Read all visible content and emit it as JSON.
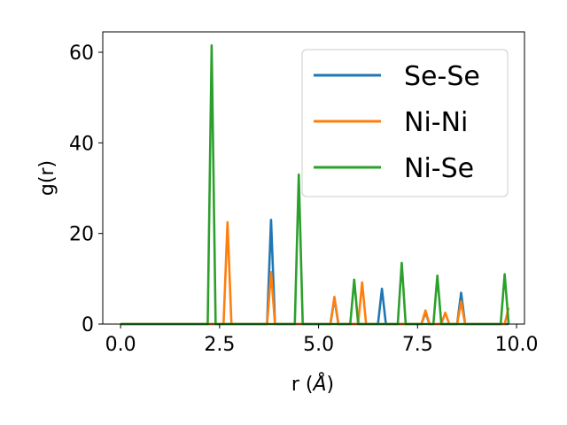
{
  "chart_data": {
    "type": "line",
    "xlabel_text": "r (",
    "xlabel_unit": "Å",
    "xlabel_close": ")",
    "ylabel": "g(r)",
    "xlim": [
      -0.45,
      10.2
    ],
    "ylim": [
      0,
      64.5
    ],
    "xticks": [
      0.0,
      2.5,
      5.0,
      7.5,
      10.0
    ],
    "xtick_labels": [
      "0.0",
      "2.5",
      "5.0",
      "7.5",
      "10.0"
    ],
    "yticks": [
      0,
      20,
      40,
      60
    ],
    "ytick_labels": [
      "0",
      "20",
      "40",
      "60"
    ],
    "legend_position": "top-right",
    "grid": false,
    "series": [
      {
        "name": "Se-Se",
        "color": "#1f77b4",
        "x": [
          0.0,
          3.7,
          3.8,
          3.9,
          5.3,
          5.4,
          5.5,
          6.5,
          6.6,
          6.7,
          7.6,
          7.7,
          7.8,
          8.5,
          8.6,
          8.7,
          9.8
        ],
        "y": [
          0,
          0,
          23,
          0,
          0,
          5.7,
          0,
          0,
          7.8,
          0,
          0,
          2.6,
          0,
          0,
          6.9,
          0,
          0
        ]
      },
      {
        "name": "Ni-Ni",
        "color": "#ff7f0e",
        "x": [
          0.0,
          2.6,
          2.7,
          2.8,
          3.7,
          3.8,
          3.9,
          5.3,
          5.4,
          5.5,
          6.0,
          6.1,
          6.2,
          7.6,
          7.7,
          7.8,
          8.1,
          8.2,
          8.3,
          8.5,
          8.6,
          8.7,
          9.7,
          9.8
        ],
        "y": [
          0,
          0,
          22.5,
          0,
          0,
          11.5,
          0,
          0,
          6.0,
          0,
          0,
          9.2,
          0,
          0,
          3.0,
          0,
          0,
          2.5,
          0,
          0,
          5.0,
          0,
          0,
          3.6
        ]
      },
      {
        "name": "Ni-Se",
        "color": "#2ca02c",
        "x": [
          0.0,
          2.2,
          2.3,
          2.4,
          4.4,
          4.5,
          4.6,
          5.8,
          5.9,
          6.0,
          7.0,
          7.1,
          7.2,
          7.9,
          8.0,
          8.1,
          9.6,
          9.7,
          9.8
        ],
        "y": [
          0,
          0,
          61.5,
          0,
          0,
          33,
          0,
          0,
          9.8,
          0,
          0,
          13.5,
          0,
          0,
          10.7,
          0,
          0,
          11.0,
          0
        ]
      }
    ]
  }
}
